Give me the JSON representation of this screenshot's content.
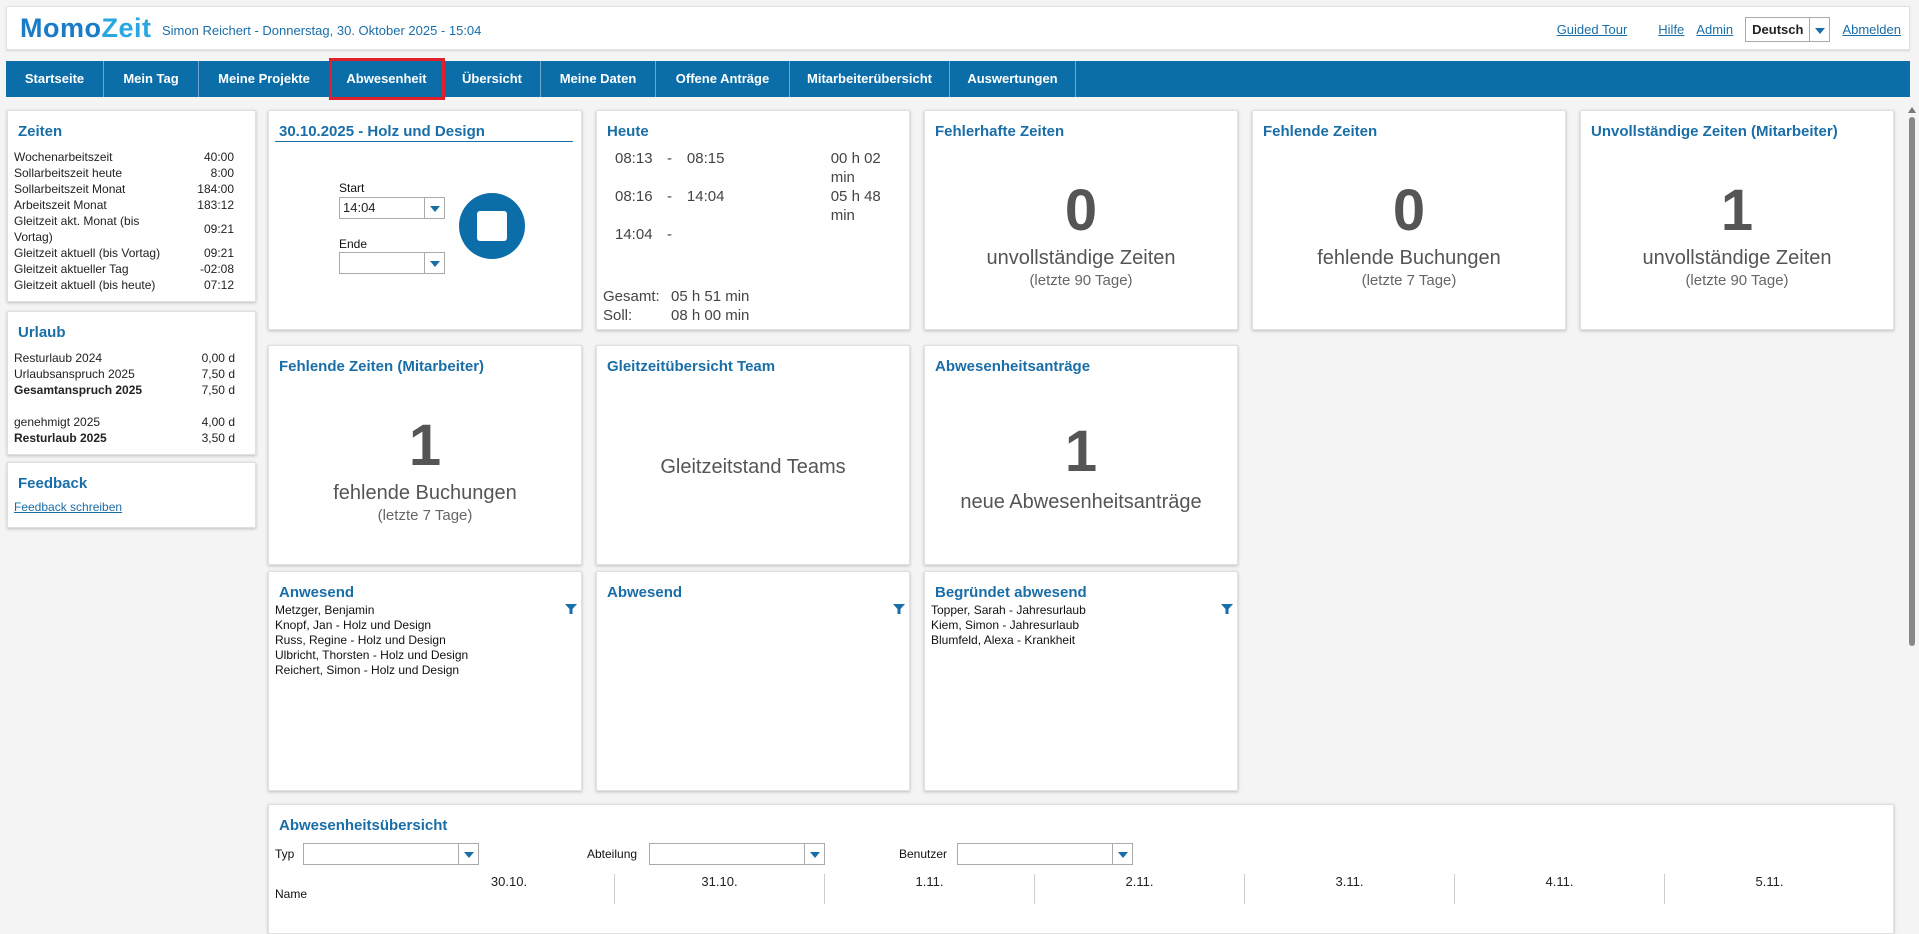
{
  "header": {
    "logo_a": "Momo",
    "logo_b": "Zeit",
    "user_info": "Simon Reichert - Donnerstag, 30. Oktober 2025 - 15:04",
    "links": {
      "guided_tour": "Guided Tour",
      "help": "Hilfe",
      "admin": "Admin",
      "logout": "Abmelden"
    },
    "language": "Deutsch"
  },
  "nav": {
    "tabs": [
      {
        "label": "Startseite"
      },
      {
        "label": "Mein Tag"
      },
      {
        "label": "Meine Projekte"
      },
      {
        "label": "Abwesenheit"
      },
      {
        "label": "Übersicht"
      },
      {
        "label": "Meine Daten"
      },
      {
        "label": "Offene Anträge"
      },
      {
        "label": "Mitarbeiterübersicht"
      },
      {
        "label": "Auswertungen"
      }
    ],
    "active": "Abwesenheit"
  },
  "zeiten": {
    "title": "Zeiten",
    "rows": [
      {
        "k": "Wochenarbeitszeit",
        "v": "40:00"
      },
      {
        "k": "Sollarbeitszeit heute",
        "v": "8:00"
      },
      {
        "k": "Sollarbeitszeit Monat",
        "v": "184:00"
      },
      {
        "k": "Arbeitszeit Monat",
        "v": "183:12"
      },
      {
        "k": "Gleitzeit akt. Monat (bis Vortag)",
        "v": "09:21"
      },
      {
        "k": "Gleitzeit aktuell (bis Vortag)",
        "v": "09:21"
      },
      {
        "k": "Gleitzeit aktueller Tag",
        "v": "-02:08"
      },
      {
        "k": "Gleitzeit aktuell (bis heute)",
        "v": "07:12"
      }
    ]
  },
  "urlaub": {
    "title": "Urlaub",
    "rows": [
      {
        "k": "Resturlaub 2024",
        "v": "0,00 d"
      },
      {
        "k": "Urlaubsanspruch 2025",
        "v": "7,50 d"
      },
      {
        "k": "Gesamtanspruch 2025",
        "v": "7,50 d"
      },
      {
        "k": "genehmigt 2025",
        "v": "4,00 d"
      },
      {
        "k": "Resturlaub 2025",
        "v": "3,50 d"
      }
    ]
  },
  "feedback": {
    "title": "Feedback",
    "link": "Feedback schreiben"
  },
  "booking": {
    "title": "30.10.2025 - Holz und Design",
    "start_label": "Start",
    "start_value": "14:04",
    "end_label": "Ende",
    "end_value": ""
  },
  "today": {
    "title": "Heute",
    "entries": [
      {
        "from": "08:13",
        "sep": "-",
        "to": "08:15",
        "dur": "00 h 02 min"
      },
      {
        "from": "08:16",
        "sep": "-",
        "to": "14:04",
        "dur": "05 h 48 min"
      },
      {
        "from": "14:04",
        "sep": "-",
        "to": "",
        "dur": ""
      }
    ],
    "total_label": "Gesamt:",
    "total_value": "05 h 51 min",
    "target_label": "Soll:",
    "target_value": "08 h 00 min"
  },
  "fehlerhafte": {
    "title": "Fehlerhafte Zeiten",
    "count": "0",
    "text": "unvollständige Zeiten",
    "sub": "(letzte 90 Tage)"
  },
  "fehlende": {
    "title": "Fehlende Zeiten",
    "count": "0",
    "text": "fehlende Buchungen",
    "sub": "(letzte 7 Tage)"
  },
  "unvollstaendig_ma": {
    "title": "Unvollständige Zeiten (Mitarbeiter)",
    "count": "1",
    "text": "unvollständige Zeiten",
    "sub": "(letzte 90 Tage)"
  },
  "fehlende_ma": {
    "title": "Fehlende Zeiten (Mitarbeiter)",
    "count": "1",
    "text": "fehlende Buchungen",
    "sub": "(letzte 7 Tage)"
  },
  "gleitzeit_team": {
    "title": "Gleitzeitübersicht Team",
    "text": "Gleitzeitstand Teams"
  },
  "abwesenheitsantraege": {
    "title": "Abwesenheitsanträge",
    "count": "1",
    "text": "neue Abwesenheitsanträge"
  },
  "anwesend": {
    "title": "Anwesend",
    "names": [
      "Metzger, Benjamin",
      "Knopf, Jan - Holz und Design",
      "Russ, Regine - Holz und Design",
      "Ulbricht, Thorsten - Holz und Design",
      "Reichert, Simon - Holz und Design"
    ]
  },
  "abwesend": {
    "title": "Abwesend",
    "names": []
  },
  "begruendet": {
    "title": "Begründet abwesend",
    "names": [
      "Topper, Sarah - Jahresurlaub",
      "Kiem, Simon - Jahresurlaub",
      "Blumfeld, Alexa - Krankheit"
    ]
  },
  "overview": {
    "title": "Abwesenheitsübersicht",
    "filters": {
      "type": "Typ",
      "department": "Abteilung",
      "user": "Benutzer"
    },
    "name_col": "Name",
    "dates": [
      "30.10.",
      "31.10.",
      "1.11.",
      "2.11.",
      "3.11.",
      "4.11.",
      "5.11."
    ]
  },
  "colors": {
    "accent": "#1a6ea8",
    "nav": "#0b6ea8",
    "highlight": "#e0202c"
  },
  "icons": [
    "stop-icon",
    "filter-icon",
    "chevron-down-icon"
  ]
}
